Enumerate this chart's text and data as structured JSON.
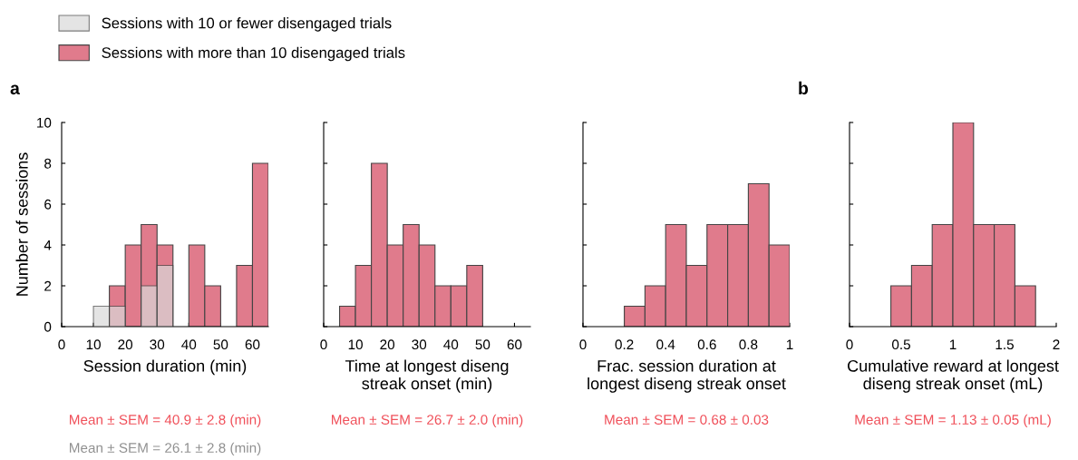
{
  "chart_data": [
    {
      "type": "histogram",
      "title": "a",
      "xlabel": "Session duration (min)",
      "ylabel": "Number of sessions",
      "bins": [
        10,
        15,
        20,
        25,
        30,
        35,
        40,
        45,
        50,
        55,
        60,
        65
      ],
      "series": [
        {
          "name": "Sessions with more than 10 disengaged trials",
          "color": "#e07b8c",
          "values": [
            0,
            2,
            4,
            5,
            4,
            0,
            4,
            2,
            0,
            3,
            8
          ]
        },
        {
          "name": "Sessions with 10 or fewer disengaged trials",
          "color": "#d9d9d9",
          "values": [
            1,
            1,
            0,
            2,
            3,
            0,
            0,
            0,
            0,
            0,
            0
          ]
        }
      ],
      "xlim": [
        0,
        65
      ],
      "xticks": [
        0,
        10,
        20,
        30,
        40,
        50,
        60
      ],
      "ylim": [
        0,
        10
      ],
      "yticks": [
        0,
        2,
        4,
        6,
        8,
        10
      ],
      "legend": "top right",
      "annotations": [
        "Mean ± SEM = 40.9 ± 2.8 (min)",
        "Mean ± SEM = 26.1 ± 2.8 (min)"
      ]
    },
    {
      "type": "histogram",
      "xlabel": "Time at longest diseng\nstreak onset (min)",
      "bins": [
        5,
        10,
        15,
        20,
        25,
        30,
        35,
        40,
        45,
        50
      ],
      "series": [
        {
          "color": "#e07b8c",
          "values": [
            1,
            3,
            8,
            4,
            5,
            4,
            2,
            2,
            3
          ]
        }
      ],
      "xlim": [
        0,
        65
      ],
      "xticks": [
        0,
        10,
        20,
        30,
        40,
        50,
        60
      ],
      "ylim": [
        0,
        10
      ],
      "yticks": [
        0,
        2,
        4,
        6,
        8,
        10
      ],
      "tick_labels": "x",
      "annotations": [
        "Mean ± SEM = 26.7 ± 2.0 (min)"
      ]
    },
    {
      "type": "histogram",
      "xlabel": "Frac. session duration at\nlongest diseng streak onset",
      "bins": [
        0.2,
        0.3,
        0.4,
        0.5,
        0.6,
        0.7,
        0.8,
        0.9,
        1.0
      ],
      "series": [
        {
          "color": "#e07b8c",
          "values": [
            1,
            2,
            5,
            3,
            5,
            5,
            7,
            4
          ]
        }
      ],
      "xlim": [
        0,
        1
      ],
      "xticks": [
        0,
        0.2,
        0.4,
        0.6,
        0.8,
        1
      ],
      "ylim": [
        0,
        10
      ],
      "yticks": [
        0,
        2,
        4,
        6,
        8,
        10
      ],
      "tick_labels": "x",
      "annotations": [
        "Mean ± SEM = 0.68 ± 0.03"
      ]
    },
    {
      "type": "histogram",
      "title": "b",
      "xlabel": "Cumulative reward at longest\ndiseng streak onset (mL)",
      "bins": [
        0.4,
        0.6,
        0.8,
        1.0,
        1.2,
        1.4,
        1.6,
        1.8
      ],
      "series": [
        {
          "color": "#e07b8c",
          "values": [
            2,
            3,
            5,
            10,
            5,
            5,
            2
          ]
        }
      ],
      "xlim": [
        0,
        2
      ],
      "xticks": [
        0,
        0.5,
        1,
        1.5,
        2
      ],
      "ylim": [
        0,
        10
      ],
      "yticks": [
        0,
        2,
        4,
        6,
        8,
        10
      ],
      "tick_labels": "x",
      "annotations": [
        "Mean ± SEM = 1.13 ± 0.05 (mL)"
      ]
    }
  ]
}
